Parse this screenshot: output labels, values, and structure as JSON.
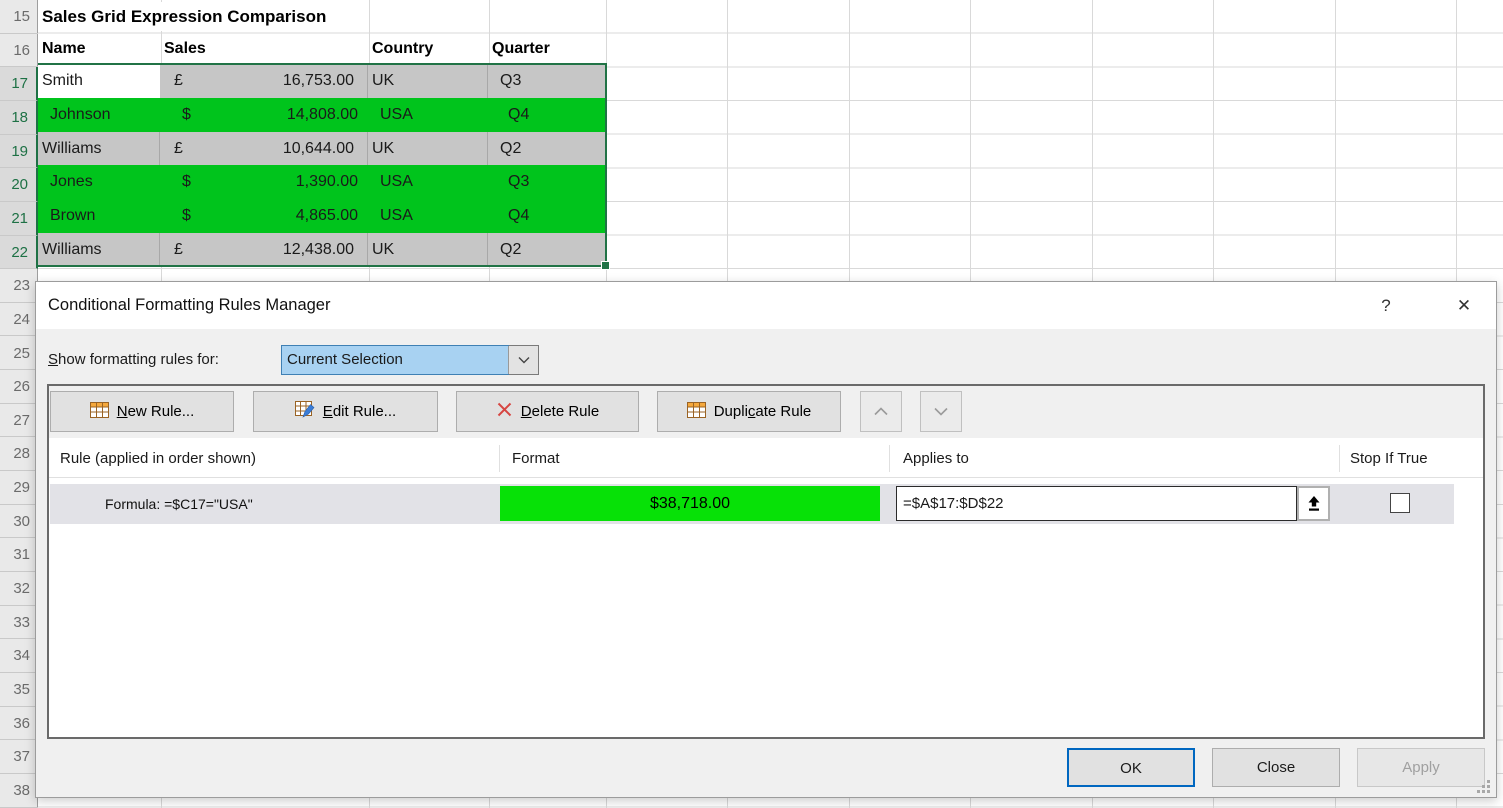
{
  "sheet": {
    "title_cell": "Sales Grid Expression Comparison",
    "headers": {
      "name": "Name",
      "sales": "Sales",
      "country": "Country",
      "quarter": "Quarter"
    },
    "row_numbers": [
      "15",
      "16",
      "17",
      "18",
      "19",
      "20",
      "21",
      "22",
      "23",
      "24",
      "25",
      "26",
      "27",
      "28",
      "29",
      "30",
      "31",
      "32",
      "33",
      "34",
      "35",
      "36",
      "37",
      "38"
    ],
    "selected_row_numbers": [
      "17",
      "18",
      "19",
      "20",
      "21",
      "22"
    ],
    "rows": [
      {
        "name": "Smith",
        "currency": "£",
        "amount": "16,753.00",
        "country": "UK",
        "quarter": "Q3",
        "usa": false
      },
      {
        "name": "Johnson",
        "currency": "$",
        "amount": "14,808.00",
        "country": "USA",
        "quarter": "Q4",
        "usa": true
      },
      {
        "name": "Williams",
        "currency": "£",
        "amount": "10,644.00",
        "country": "UK",
        "quarter": "Q2",
        "usa": false
      },
      {
        "name": "Jones",
        "currency": "$",
        "amount": "1,390.00",
        "country": "USA",
        "quarter": "Q3",
        "usa": true
      },
      {
        "name": "Brown",
        "currency": "$",
        "amount": "4,865.00",
        "country": "USA",
        "quarter": "Q4",
        "usa": true
      },
      {
        "name": "Williams",
        "currency": "£",
        "amount": "12,438.00",
        "country": "UK",
        "quarter": "Q2",
        "usa": false
      }
    ]
  },
  "dialog": {
    "title": "Conditional Formatting Rules Manager",
    "help_glyph": "?",
    "close_glyph": "✕",
    "show_label": {
      "pre": "",
      "key": "S",
      "post": "how formatting rules for:"
    },
    "combo_value": "Current Selection",
    "toolbar": {
      "new_rule": {
        "pre": "",
        "key": "N",
        "post": "ew Rule..."
      },
      "edit_rule": {
        "pre": "",
        "key": "E",
        "post": "dit Rule..."
      },
      "delete_rule": {
        "pre": "",
        "key": "D",
        "post": "elete Rule"
      },
      "duplicate_rule": {
        "pre": "Dupli",
        "key": "c",
        "post": "ate Rule"
      }
    },
    "list": {
      "headers": {
        "rule": "Rule (applied in order shown)",
        "format": "Format",
        "applies": "Applies to",
        "stop": "Stop If True"
      },
      "rule": {
        "text": "Formula: =$C17=\"USA\"",
        "preview_text": "$38,718.00",
        "applies_to": "=$A$17:$D$22"
      }
    },
    "footer": {
      "ok": "OK",
      "close": "Close",
      "apply": "Apply"
    }
  },
  "colors": {
    "cell_fill_green": "#00c41c",
    "preview_green": "#07e107",
    "selection_gray": "#c6c6c6",
    "selection_border_green": "#217346",
    "row_header_green": "#1e7145",
    "combo_highlight_blue": "#a8d2f2",
    "ok_border_blue": "#0067c0"
  }
}
